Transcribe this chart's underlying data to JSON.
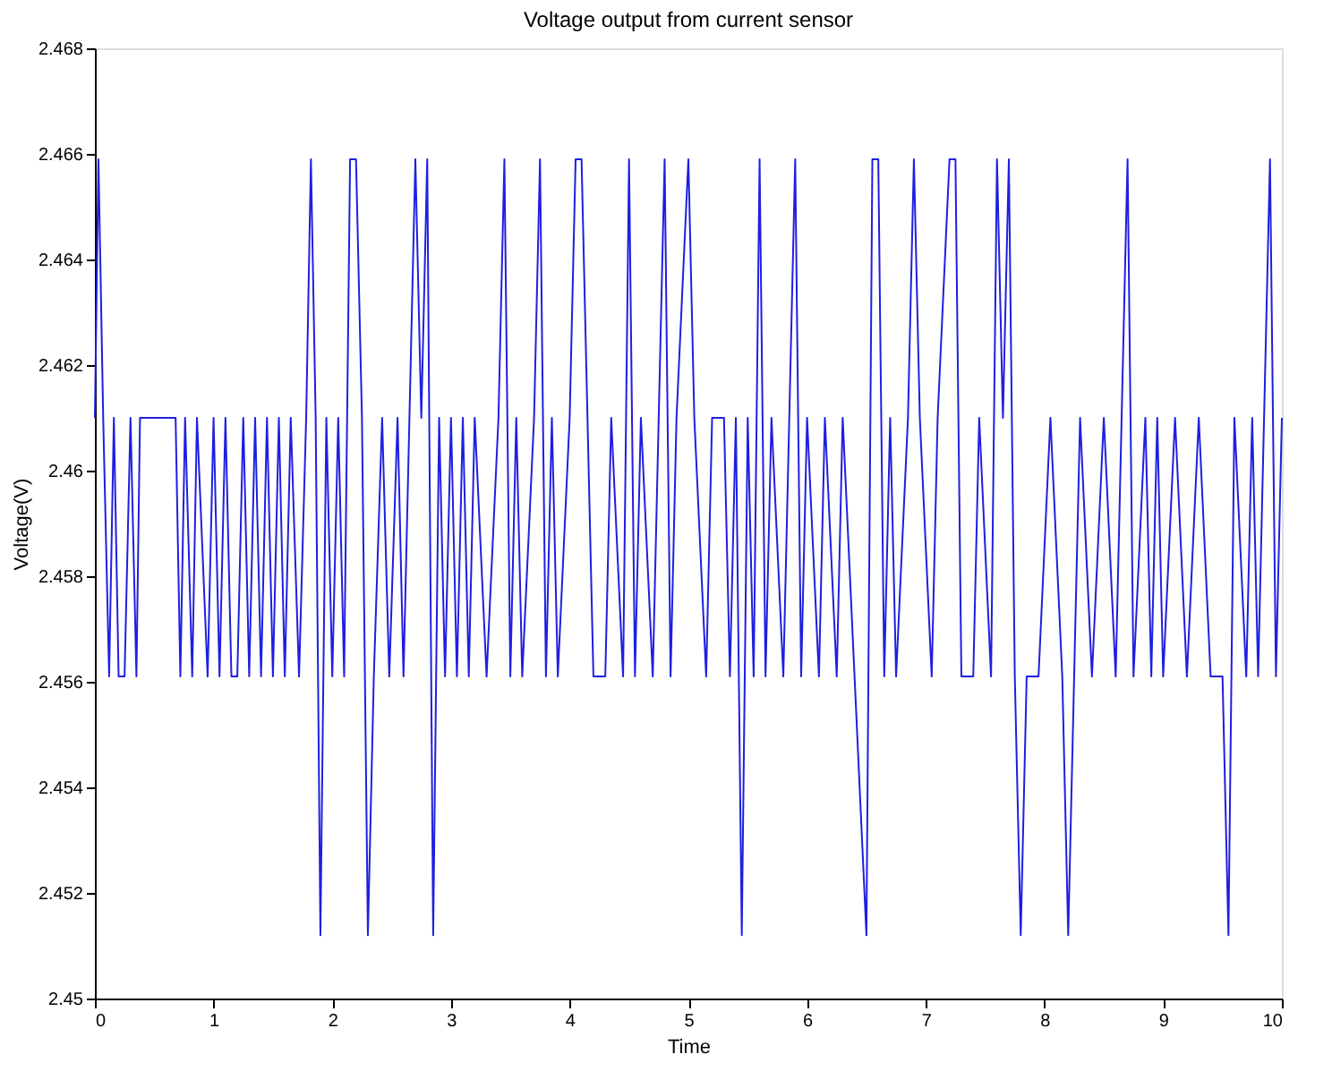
{
  "chart_data": {
    "type": "line",
    "title": "Voltage output from current sensor",
    "xlabel": "Time",
    "ylabel": "Voltage(V)",
    "xlim": [
      0,
      10
    ],
    "xticks": [
      0,
      1,
      2,
      3,
      4,
      5,
      6,
      7,
      8,
      9,
      10
    ],
    "ylim": [
      2.45,
      2.468
    ],
    "yticks": [
      2.45,
      2.452,
      2.454,
      2.456,
      2.458,
      2.46,
      2.462,
      2.464,
      2.466,
      2.468
    ],
    "grid": false,
    "marker": "none",
    "line_style": "solid",
    "series": [
      {
        "color": "#1f1fe0",
        "x": [
          0,
          0.03,
          0.07,
          0.12,
          0.16,
          0.2,
          0.25,
          0.3,
          0.35,
          0.38,
          0.68,
          0.72,
          0.76,
          0.82,
          0.86,
          0.95,
          1.0,
          1.05,
          1.1,
          1.15,
          1.2,
          1.25,
          1.3,
          1.35,
          1.4,
          1.45,
          1.5,
          1.55,
          1.6,
          1.65,
          1.72,
          1.78,
          1.82,
          1.86,
          1.9,
          1.95,
          2.0,
          2.05,
          2.1,
          2.15,
          2.2,
          2.25,
          2.3,
          2.35,
          2.42,
          2.48,
          2.55,
          2.6,
          2.65,
          2.7,
          2.75,
          2.8,
          2.85,
          2.9,
          2.95,
          3.0,
          3.05,
          3.1,
          3.15,
          3.2,
          3.3,
          3.4,
          3.45,
          3.5,
          3.55,
          3.6,
          3.7,
          3.75,
          3.8,
          3.85,
          3.9,
          4.0,
          4.05,
          4.1,
          4.15,
          4.2,
          4.3,
          4.35,
          4.45,
          4.5,
          4.55,
          4.6,
          4.7,
          4.75,
          4.8,
          4.85,
          4.9,
          5.0,
          5.05,
          5.15,
          5.2,
          5.3,
          5.35,
          5.4,
          5.45,
          5.5,
          5.55,
          5.6,
          5.65,
          5.7,
          5.8,
          5.85,
          5.9,
          5.95,
          6.0,
          6.1,
          6.15,
          6.25,
          6.3,
          6.4,
          6.5,
          6.55,
          6.6,
          6.65,
          6.7,
          6.75,
          6.85,
          6.9,
          6.95,
          7.05,
          7.1,
          7.2,
          7.25,
          7.3,
          7.4,
          7.45,
          7.55,
          7.6,
          7.65,
          7.7,
          7.75,
          7.8,
          7.85,
          7.95,
          8.05,
          8.15,
          8.2,
          8.3,
          8.4,
          8.5,
          8.6,
          8.65,
          8.7,
          8.75,
          8.85,
          8.9,
          8.95,
          9.0,
          9.1,
          9.2,
          9.3,
          9.4,
          9.5,
          9.55,
          9.6,
          9.7,
          9.75,
          9.8,
          9.85,
          9.9,
          9.95,
          10.0
        ],
        "values": [
          2.461,
          2.4659,
          2.461,
          2.4561,
          2.461,
          2.4561,
          2.4561,
          2.461,
          2.4561,
          2.461,
          2.461,
          2.4561,
          2.461,
          2.4561,
          2.461,
          2.4561,
          2.461,
          2.4561,
          2.461,
          2.4561,
          2.4561,
          2.461,
          2.4561,
          2.461,
          2.4561,
          2.461,
          2.4561,
          2.461,
          2.4561,
          2.461,
          2.4561,
          2.461,
          2.4659,
          2.461,
          2.4512,
          2.461,
          2.4561,
          2.461,
          2.4561,
          2.4659,
          2.4659,
          2.461,
          2.4512,
          2.4561,
          2.461,
          2.4561,
          2.461,
          2.4561,
          2.461,
          2.4659,
          2.461,
          2.4659,
          2.4512,
          2.461,
          2.4561,
          2.461,
          2.4561,
          2.461,
          2.4561,
          2.461,
          2.4561,
          2.461,
          2.4659,
          2.4561,
          2.461,
          2.4561,
          2.461,
          2.4659,
          2.4561,
          2.461,
          2.4561,
          2.461,
          2.4659,
          2.4659,
          2.461,
          2.4561,
          2.4561,
          2.461,
          2.4561,
          2.4659,
          2.4561,
          2.461,
          2.4561,
          2.461,
          2.4659,
          2.4561,
          2.461,
          2.4659,
          2.461,
          2.4561,
          2.461,
          2.461,
          2.4561,
          2.461,
          2.4512,
          2.461,
          2.4561,
          2.4659,
          2.4561,
          2.461,
          2.4561,
          2.461,
          2.4659,
          2.4561,
          2.461,
          2.4561,
          2.461,
          2.4561,
          2.461,
          2.4561,
          2.4512,
          2.4659,
          2.4659,
          2.4561,
          2.461,
          2.4561,
          2.461,
          2.4659,
          2.461,
          2.4561,
          2.461,
          2.4659,
          2.4659,
          2.4561,
          2.4561,
          2.461,
          2.4561,
          2.4659,
          2.461,
          2.4659,
          2.4561,
          2.4512,
          2.4561,
          2.4561,
          2.461,
          2.4561,
          2.4512,
          2.461,
          2.4561,
          2.461,
          2.4561,
          2.461,
          2.4659,
          2.4561,
          2.461,
          2.4561,
          2.461,
          2.4561,
          2.461,
          2.4561,
          2.461,
          2.4561,
          2.4561,
          2.4512,
          2.461,
          2.4561,
          2.461,
          2.4561,
          2.461,
          2.4659,
          2.4561,
          2.461
        ]
      }
    ]
  }
}
